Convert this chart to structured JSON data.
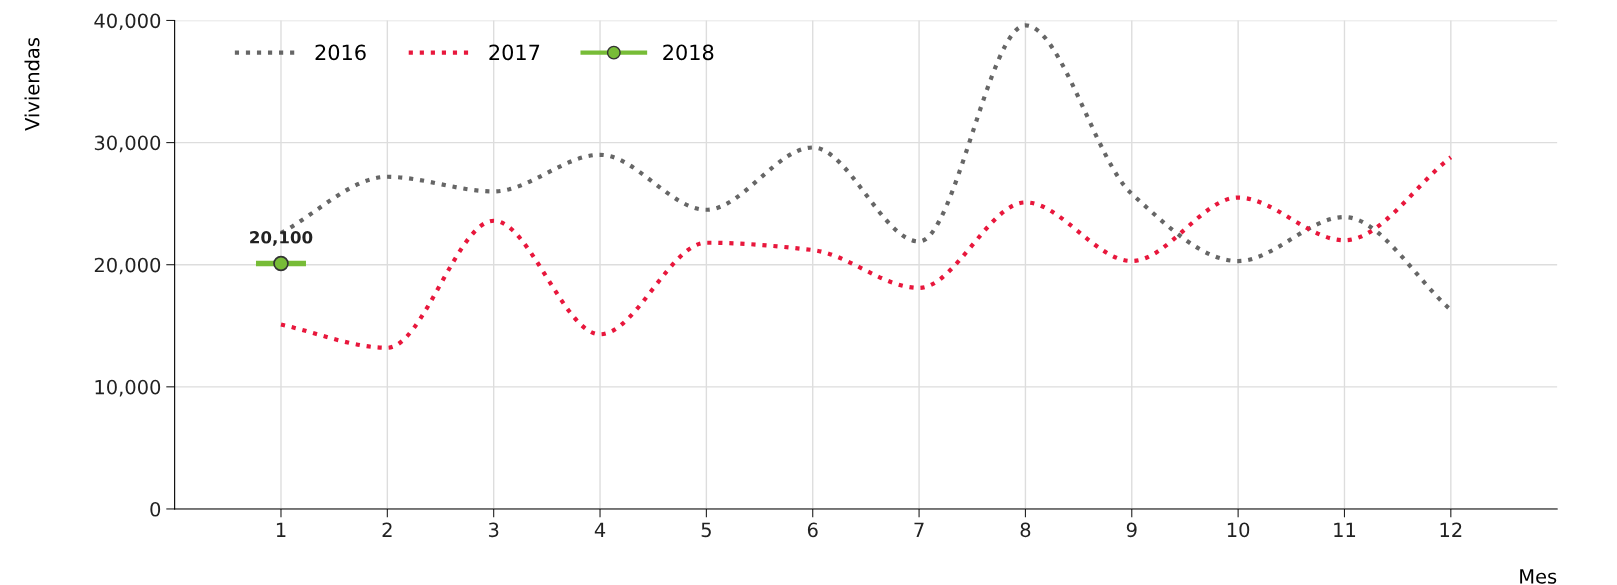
{
  "chart_data": {
    "type": "line",
    "xlabel": "Mes",
    "ylabel": "Viviendas",
    "x": [
      1,
      2,
      3,
      4,
      5,
      6,
      7,
      8,
      9,
      10,
      11,
      12
    ],
    "xlim": [
      0,
      13
    ],
    "xticks": [
      1,
      2,
      3,
      4,
      5,
      6,
      7,
      8,
      9,
      10,
      11,
      12
    ],
    "ylim": [
      0,
      40000
    ],
    "yticks": [
      {
        "value": 0,
        "label": "0"
      },
      {
        "value": 10000,
        "label": "10,000"
      },
      {
        "value": 20000,
        "label": "20,000"
      },
      {
        "value": 30000,
        "label": "30,000"
      },
      {
        "value": 40000,
        "label": "40,000"
      }
    ],
    "grid": true,
    "legend": "top left",
    "series": [
      {
        "name": "2016",
        "color": "#666666",
        "line_style": "dotted",
        "marker": "none",
        "values": [
          22600,
          27200,
          26000,
          29000,
          24500,
          29600,
          21900,
          39600,
          25800,
          20300,
          23900,
          16300
        ]
      },
      {
        "name": "2017",
        "color": "#e8173c",
        "line_style": "dotted",
        "marker": "none",
        "values": [
          15100,
          13200,
          23600,
          14300,
          21800,
          21200,
          18100,
          25100,
          20300,
          25500,
          22000,
          28800
        ]
      },
      {
        "name": "2018",
        "color": "#77bc37",
        "line_style": "solid",
        "marker": "circle",
        "values": [
          20100,
          null,
          null,
          null,
          null,
          null,
          null,
          null,
          null,
          null,
          null,
          null
        ],
        "value_labels": [
          "20,100",
          null,
          null,
          null,
          null,
          null,
          null,
          null,
          null,
          null,
          null,
          null
        ]
      }
    ]
  }
}
